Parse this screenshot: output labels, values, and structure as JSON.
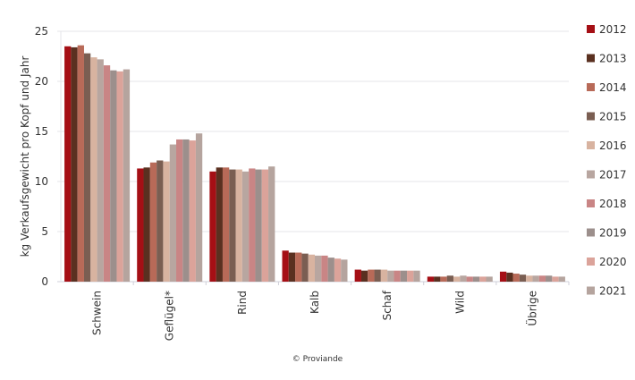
{
  "chart_data": {
    "type": "bar",
    "title": "",
    "xlabel": "",
    "ylabel": "kg Verkaufsgewicht pro Kopf und Jahr",
    "ylim": [
      0,
      25
    ],
    "yticks": [
      0,
      5,
      10,
      15,
      20,
      25
    ],
    "grid": true,
    "legend_position": "right",
    "categories": [
      "Schwein",
      "Geflügel*",
      "Rind",
      "Kalb",
      "Schaf",
      "Wild",
      "Übrige"
    ],
    "series": [
      {
        "name": "2012",
        "color": "#A50F15",
        "values": [
          23.5,
          11.3,
          11.0,
          3.1,
          1.2,
          0.5,
          1.0
        ]
      },
      {
        "name": "2013",
        "color": "#5A3020",
        "values": [
          23.4,
          11.4,
          11.4,
          2.9,
          1.1,
          0.5,
          0.9
        ]
      },
      {
        "name": "2014",
        "color": "#B86A58",
        "values": [
          23.6,
          11.9,
          11.4,
          2.9,
          1.2,
          0.5,
          0.8
        ]
      },
      {
        "name": "2015",
        "color": "#7A5E52",
        "values": [
          22.8,
          12.1,
          11.2,
          2.8,
          1.2,
          0.6,
          0.7
        ]
      },
      {
        "name": "2016",
        "color": "#D8B3A0",
        "values": [
          22.4,
          12.0,
          11.2,
          2.7,
          1.2,
          0.5,
          0.6
        ]
      },
      {
        "name": "2017",
        "color": "#B8A6A0",
        "values": [
          22.2,
          13.7,
          11.0,
          2.6,
          1.1,
          0.6,
          0.6
        ]
      },
      {
        "name": "2018",
        "color": "#C98585",
        "values": [
          21.6,
          14.2,
          11.3,
          2.6,
          1.1,
          0.5,
          0.6
        ]
      },
      {
        "name": "2019",
        "color": "#9C8F8C",
        "values": [
          21.1,
          14.2,
          11.2,
          2.4,
          1.1,
          0.5,
          0.6
        ]
      },
      {
        "name": "2020",
        "color": "#DBA39A",
        "values": [
          21.0,
          14.1,
          11.2,
          2.3,
          1.1,
          0.5,
          0.5
        ]
      },
      {
        "name": "2021",
        "color": "#B5A49E",
        "values": [
          21.2,
          14.8,
          11.5,
          2.2,
          1.1,
          0.5,
          0.5
        ]
      }
    ],
    "annotations": [
      "© Proviande"
    ]
  },
  "credit": "© Proviande"
}
